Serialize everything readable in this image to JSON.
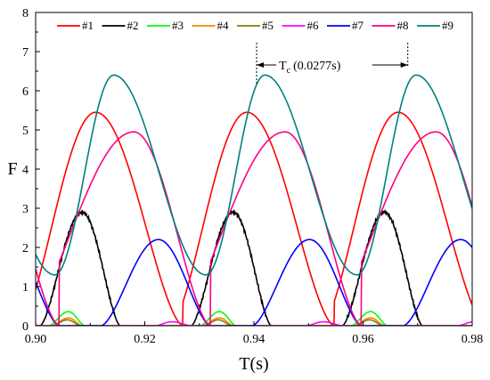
{
  "chart_data": {
    "type": "line",
    "xlabel": "T(s)",
    "ylabel": "F",
    "xlim": [
      0.9,
      0.98
    ],
    "ylim": [
      0,
      8
    ],
    "x_ticks": [
      "0.90",
      "0.92",
      "0.94",
      "0.96",
      "0.98"
    ],
    "y_ticks": [
      "0",
      "1",
      "2",
      "3",
      "4",
      "5",
      "6",
      "7",
      "8"
    ],
    "grid": false,
    "legend_position": "top",
    "period": 0.0277,
    "annotation": {
      "symbol": "T",
      "subscript": "c",
      "value_text": "(0.0277s)",
      "x_start": 0.9405,
      "x_end": 0.9682
    },
    "series": [
      {
        "name": "#1",
        "color": "#ff0000",
        "kind": "bump",
        "x0": 0.897,
        "peak_x": 0.911,
        "x1": 0.927,
        "peak": 5.45
      },
      {
        "name": "#2",
        "color": "#000000",
        "kind": "bump",
        "x0": 0.9008,
        "peak_x": 0.9085,
        "x1": 0.9155,
        "peak": 2.9,
        "noisy": true
      },
      {
        "name": "#3",
        "color": "#00ff00",
        "kind": "bump",
        "x0": 0.9025,
        "peak_x": 0.906,
        "x1": 0.909,
        "peak": 0.36
      },
      {
        "name": "#4",
        "color": "#ff8000",
        "kind": "bump",
        "x0": 0.903,
        "peak_x": 0.906,
        "x1": 0.9085,
        "peak": 0.2
      },
      {
        "name": "#5",
        "color": "#808000",
        "kind": "bump",
        "x0": 0.9032,
        "peak_x": 0.9058,
        "x1": 0.9082,
        "peak": 0.15
      },
      {
        "name": "#6",
        "color": "#ff00ff",
        "kind": "bump",
        "x0": 0.922,
        "peak_x": 0.925,
        "x1": 0.9285,
        "peak": 0.1
      },
      {
        "name": "#7",
        "color": "#0000ff",
        "kind": "bump",
        "x0": 0.912,
        "peak_x": 0.9225,
        "x1": 0.932,
        "peak": 2.2
      },
      {
        "name": "#8",
        "color": "#ff0080",
        "kind": "bump",
        "x0": 0.8975,
        "peak_x": 0.918,
        "x1": 0.932,
        "peak": 4.95
      },
      {
        "name": "#9",
        "color": "#008080",
        "kind": "wave",
        "peak_x": 0.9143,
        "peak": 6.4,
        "valley_x": 0.9035,
        "valley": 1.3
      }
    ]
  }
}
